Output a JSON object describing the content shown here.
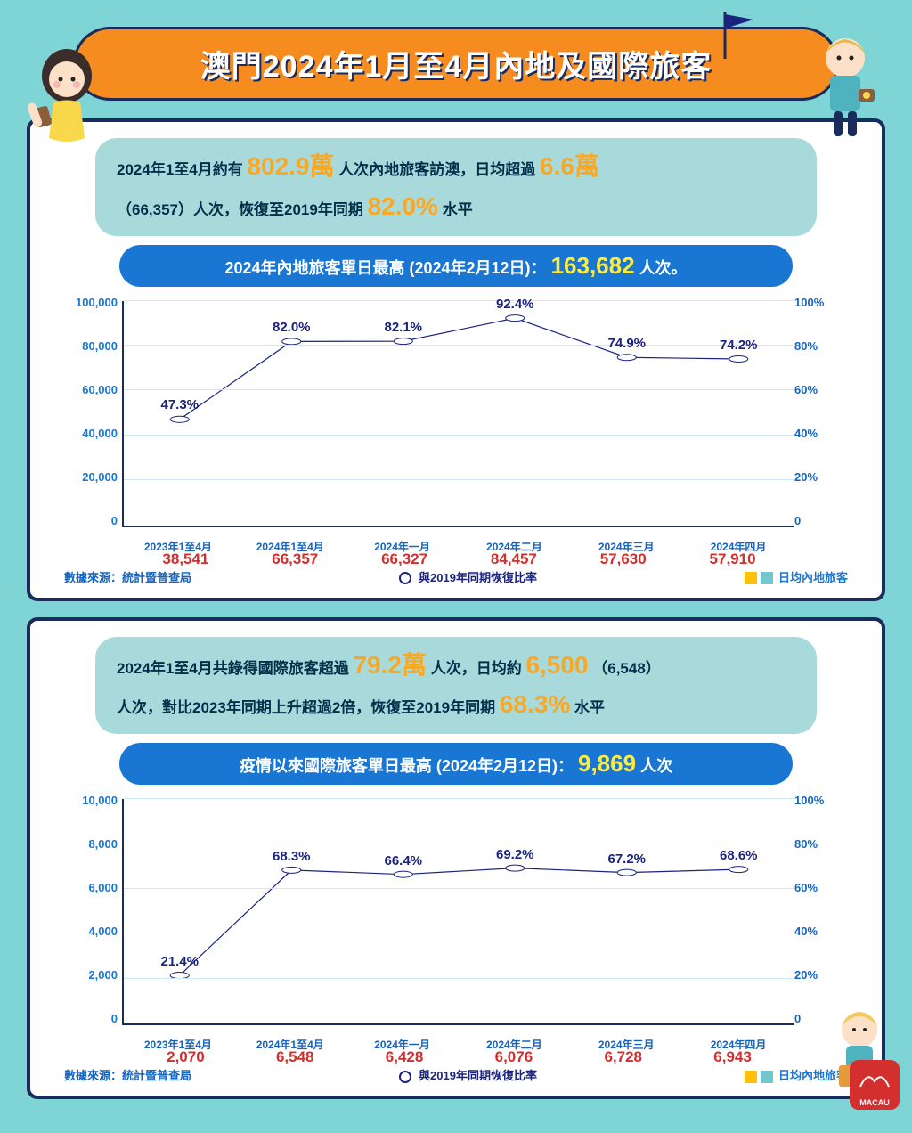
{
  "title": "澳門2024年1月至4月內地及國際旅客",
  "colors": {
    "background": "#7fd4d6",
    "panel_border": "#1a2b5c",
    "title_bg": "#f68b1f",
    "bubble_bg": "#a8dadc",
    "blue_banner": "#1976d2",
    "highlight_yellow": "#f9a825",
    "highlight_bright": "#ffeb3b",
    "bar_teal": "#71c9ce",
    "bar_yellow": "#ffc107",
    "line_navy": "#1a237e",
    "value_red": "#d32f2f",
    "axis_text": "#1565c0"
  },
  "section1": {
    "bubble_pre": "2024年1至4月約有",
    "bubble_v1": "802.9萬",
    "bubble_mid1": "人次內地旅客訪澳，日均超過",
    "bubble_v2": "6.6萬",
    "bubble_line2a": "（66,357）人次，恢復至2019年同期",
    "bubble_v3": "82.0%",
    "bubble_line2b": "水平",
    "banner_pre": "2024年內地旅客單日最高 (2024年2月12日)：",
    "banner_val": "163,682",
    "banner_suf": "人次。"
  },
  "chart1": {
    "type": "bar+line",
    "y_left_max": 100000,
    "y_left_step": 20000,
    "y_right_max": 100,
    "y_right_step": 20,
    "y_left_labels": [
      "0",
      "20,000",
      "40,000",
      "60,000",
      "80,000",
      "100,000"
    ],
    "y_right_labels": [
      "0",
      "20%",
      "40%",
      "60%",
      "80%",
      "100%"
    ],
    "categories": [
      "2023年1至4月",
      "2024年1至4月",
      "2024年一月",
      "2024年二月",
      "2024年三月",
      "2024年四月"
    ],
    "bar_values": [
      38541,
      66357,
      66327,
      84457,
      57630,
      57910
    ],
    "bar_labels": [
      "38,541",
      "66,357",
      "66,327",
      "84,457",
      "57,630",
      "57,910"
    ],
    "bar_colors": [
      "teal",
      "yellow",
      "teal",
      "teal",
      "teal",
      "teal"
    ],
    "line_values": [
      47.3,
      82.0,
      82.1,
      92.4,
      74.9,
      74.2
    ],
    "line_labels": [
      "47.3%",
      "82.0%",
      "82.1%",
      "92.4%",
      "74.9%",
      "74.2%"
    ],
    "source": "數據來源：統計暨普查局",
    "legend_line": "與2019年同期恢復比率",
    "legend_bar": "日均內地旅客"
  },
  "section2": {
    "bubble_pre": "2024年1至4月共錄得國際旅客超過",
    "bubble_v1": "79.2萬",
    "bubble_mid1": "人次，日均約",
    "bubble_v2": "6,500",
    "bubble_mid2": "（6,548）",
    "bubble_line2a": "人次，對比2023年同期上升超過2倍，恢復至2019年同期",
    "bubble_v3": "68.3%",
    "bubble_line2b": "水平",
    "banner_pre": "疫情以來國際旅客單日最高 (2024年2月12日)：",
    "banner_val": "9,869",
    "banner_suf": "人次"
  },
  "chart2": {
    "type": "bar+line",
    "y_left_max": 10000,
    "y_left_step": 2000,
    "y_right_max": 100,
    "y_right_step": 20,
    "y_left_labels": [
      "0",
      "2,000",
      "4,000",
      "6,000",
      "8,000",
      "10,000"
    ],
    "y_right_labels": [
      "0",
      "20%",
      "40%",
      "60%",
      "80%",
      "100%"
    ],
    "categories": [
      "2023年1至4月",
      "2024年1至4月",
      "2024年一月",
      "2024年二月",
      "2024年三月",
      "2024年四月"
    ],
    "bar_values": [
      2070,
      6548,
      6428,
      6076,
      6728,
      6943
    ],
    "bar_labels": [
      "2,070",
      "6,548",
      "6,428",
      "6,076",
      "6,728",
      "6,943"
    ],
    "bar_colors": [
      "teal",
      "yellow",
      "teal",
      "teal",
      "teal",
      "teal"
    ],
    "line_values": [
      21.4,
      68.3,
      66.4,
      69.2,
      67.2,
      68.6
    ],
    "line_labels": [
      "21.4%",
      "68.3%",
      "66.4%",
      "69.2%",
      "67.2%",
      "68.6%"
    ],
    "source": "數據來源：統計暨普查局",
    "legend_line": "與2019年同期恢復比率",
    "legend_bar": "日均內地旅客"
  },
  "logo_text": "MACAU"
}
